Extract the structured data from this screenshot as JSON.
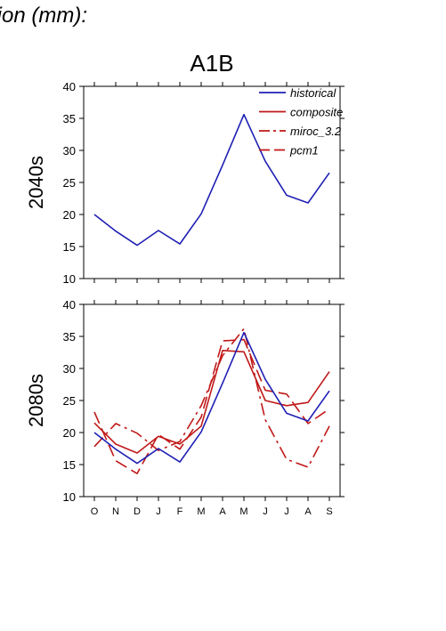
{
  "header": {
    "text": "tion (mm):"
  },
  "chart_data": {
    "type": "line",
    "scenario": "A1B",
    "categories": [
      "O",
      "N",
      "D",
      "J",
      "F",
      "M",
      "A",
      "M",
      "J",
      "J",
      "A",
      "S"
    ],
    "ylim": [
      10,
      40
    ],
    "yticks": [
      "10",
      "15",
      "20",
      "25",
      "30",
      "35",
      "40"
    ],
    "legend": {
      "placement": "top-right",
      "entries": [
        "historical",
        "composite",
        "miroc_3.2",
        "pcm1"
      ]
    },
    "colors": {
      "historical": "#1f1fb4",
      "models": "#c01818"
    },
    "panels": [
      {
        "label": "2040s",
        "series": [
          {
            "name": "historical",
            "style": "solid",
            "color": "#1f1fb4",
            "values": [
              20.0,
              17.4,
              15.2,
              17.5,
              15.4,
              20.1,
              27.7,
              35.6,
              28.3,
              23.0,
              21.8,
              26.5
            ]
          }
        ]
      },
      {
        "label": "2080s",
        "series": [
          {
            "name": "historical",
            "style": "solid",
            "color": "#1f1fb4",
            "values": [
              20.0,
              17.4,
              15.2,
              17.5,
              15.4,
              20.1,
              27.7,
              35.6,
              28.3,
              23.0,
              21.8,
              26.5
            ]
          },
          {
            "name": "composite",
            "style": "solid",
            "color": "#c01818",
            "values": [
              21.5,
              18.2,
              16.8,
              19.4,
              18.2,
              21.0,
              32.8,
              32.6,
              25.0,
              24.2,
              24.7,
              29.5
            ]
          },
          {
            "name": "miroc_3.2",
            "style": "dashdot",
            "color": "#c01818",
            "values": [
              17.8,
              21.4,
              19.9,
              17.2,
              18.6,
              24.2,
              32.0,
              36.2,
              22.0,
              15.8,
              14.6,
              21.0
            ]
          },
          {
            "name": "pcm1",
            "style": "dash",
            "color": "#c01818",
            "values": [
              23.2,
              15.6,
              13.6,
              19.7,
              17.4,
              22.4,
              34.3,
              34.5,
              26.6,
              26.0,
              21.4,
              23.7
            ]
          }
        ]
      }
    ]
  }
}
